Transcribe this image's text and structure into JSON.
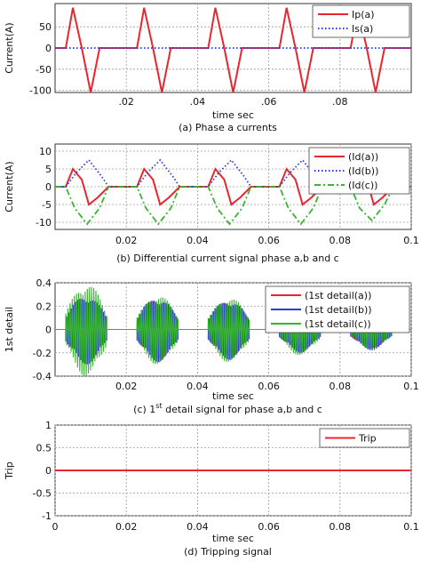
{
  "chart_data": [
    {
      "type": "line",
      "caption": "(a)  Phase a currents",
      "xlabel": "time sec",
      "ylabel": "Current(A)",
      "xlim": [
        0,
        0.1
      ],
      "ylim": [
        -105,
        105
      ],
      "xticks": [
        0.02,
        0.04,
        0.06,
        0.08
      ],
      "xtick_labels": [
        ".02",
        ".04",
        ".06",
        ".08"
      ],
      "yticks": [
        -100,
        -50,
        0,
        50
      ],
      "ytick_labels": [
        "-100",
        "-50",
        "0",
        "50"
      ],
      "grid": true,
      "legend_position": "top-right",
      "series": [
        {
          "name": "Ip(a)",
          "color": "#e8262f",
          "style": "solid",
          "x": [
            0,
            0.003,
            0.005,
            0.0075,
            0.01,
            0.0125,
            0.015,
            0.023,
            0.025,
            0.0275,
            0.03,
            0.0325,
            0.035,
            0.043,
            0.045,
            0.0475,
            0.05,
            0.0525,
            0.055,
            0.063,
            0.065,
            0.0675,
            0.07,
            0.0725,
            0.075,
            0.083,
            0.085,
            0.0875,
            0.09,
            0.0925,
            0.095,
            0.1
          ],
          "y": [
            0,
            0,
            95,
            0,
            -105,
            0,
            0,
            0,
            95,
            0,
            -105,
            0,
            0,
            0,
            95,
            0,
            -105,
            0,
            0,
            0,
            95,
            0,
            -105,
            0,
            0,
            0,
            95,
            0,
            -105,
            0,
            0,
            0
          ]
        },
        {
          "name": "Is(a)",
          "color": "#2b3fd0",
          "style": "dotted",
          "x": [
            0,
            0.1
          ],
          "y": [
            0,
            0
          ]
        }
      ]
    },
    {
      "type": "line",
      "caption": "(b)  Differential current signal phase a,b and c",
      "xlabel": "",
      "ylabel": "Current(A)",
      "xlim": [
        0,
        0.1
      ],
      "ylim": [
        -12,
        12
      ],
      "xticks": [
        0.02,
        0.04,
        0.06,
        0.08,
        0.1
      ],
      "xtick_labels": [
        "0.02",
        "0.04",
        "0.06",
        "0.08",
        "0.1"
      ],
      "yticks": [
        -10,
        -5,
        0,
        5,
        10
      ],
      "ytick_labels": [
        "-10",
        "-5",
        "0",
        "5",
        "10"
      ],
      "grid": true,
      "legend_position": "top-right",
      "series": [
        {
          "name": "(Id(a))",
          "color": "#e8262f",
          "style": "solid",
          "x": [
            0,
            0.003,
            0.005,
            0.0075,
            0.0095,
            0.012,
            0.015,
            0.023,
            0.025,
            0.0275,
            0.0295,
            0.032,
            0.035,
            0.043,
            0.045,
            0.0475,
            0.0495,
            0.052,
            0.055,
            0.063,
            0.065,
            0.0675,
            0.0695,
            0.072,
            0.075,
            0.083,
            0.085,
            0.0875,
            0.0895,
            0.092,
            0.095,
            0.1
          ],
          "y": [
            0,
            0,
            5,
            2,
            -5,
            -3,
            0,
            0,
            5,
            2,
            -5,
            -3,
            0,
            0,
            5,
            2,
            -5,
            -3,
            0,
            0,
            5,
            2,
            -5,
            -3,
            0,
            0,
            5,
            2,
            -5,
            -3,
            0,
            0
          ]
        },
        {
          "name": "(Id(b))",
          "color": "#2b3fd0",
          "style": "dotted",
          "x": [
            0,
            0.003,
            0.006,
            0.0095,
            0.013,
            0.015,
            0.023,
            0.026,
            0.0295,
            0.033,
            0.035,
            0.043,
            0.046,
            0.0495,
            0.053,
            0.055,
            0.063,
            0.066,
            0.0695,
            0.073,
            0.075,
            0.083,
            0.086,
            0.0895,
            0.093,
            0.095,
            0.1
          ],
          "y": [
            0,
            0,
            4,
            7.5,
            3,
            0,
            0,
            4,
            7.5,
            3,
            0,
            0,
            4,
            7.5,
            3,
            0,
            0,
            4,
            7.5,
            3,
            0,
            0,
            4,
            7.5,
            3,
            0,
            0
          ]
        },
        {
          "name": "(Id(c))",
          "color": "#37b52f",
          "style": "dashdot",
          "x": [
            0,
            0.003,
            0.0055,
            0.009,
            0.0125,
            0.015,
            0.023,
            0.0255,
            0.029,
            0.0325,
            0.035,
            0.043,
            0.0455,
            0.049,
            0.0525,
            0.055,
            0.063,
            0.0655,
            0.069,
            0.0725,
            0.075,
            0.083,
            0.0855,
            0.089,
            0.0925,
            0.095,
            0.1
          ],
          "y": [
            0,
            0,
            -6,
            -10.5,
            -6,
            0,
            0,
            -6,
            -10.5,
            -6,
            0,
            0,
            -6,
            -10.5,
            -6,
            0,
            0,
            -6,
            -10.5,
            -6,
            0,
            0,
            -6,
            -9.5,
            -5,
            0,
            0
          ]
        }
      ]
    },
    {
      "type": "line",
      "caption_prefix": "(c)  1",
      "caption_sup": "st",
      "caption_suffix": " detail signal for phase a,b and c",
      "xlabel": "time sec",
      "ylabel": "1st detail",
      "xlim": [
        0,
        0.1
      ],
      "ylim": [
        -0.4,
        0.4
      ],
      "xticks": [
        0.02,
        0.04,
        0.06,
        0.08,
        0.1
      ],
      "xtick_labels": [
        "0.02",
        "0.04",
        "0.06",
        "0.08",
        "0.1"
      ],
      "yticks": [
        -0.4,
        -0.2,
        0,
        0.2,
        0.4
      ],
      "ytick_labels": [
        "-0.4",
        "-0.2",
        "0",
        "0.2",
        "0.4"
      ],
      "grid": true,
      "legend_position": "top-right",
      "bursts": [
        [
          0.003,
          0.0145
        ],
        [
          0.023,
          0.0345
        ],
        [
          0.043,
          0.0545
        ],
        [
          0.063,
          0.0745
        ],
        [
          0.083,
          0.0945
        ]
      ],
      "series": [
        {
          "name": "(1st detail(a))",
          "color": "#e8262f",
          "amplitude": [
            0.28,
            0.26,
            0.24,
            0.18,
            0.16
          ]
        },
        {
          "name": "(1st detail(b))",
          "color": "#2b3fd0",
          "amplitude": [
            0.3,
            0.28,
            0.26,
            0.2,
            0.18
          ]
        },
        {
          "name": "(1st detail(c))",
          "color": "#37b52f",
          "amplitude": [
            0.4,
            0.3,
            0.28,
            0.22,
            0.17
          ]
        }
      ]
    },
    {
      "type": "line",
      "caption": "(d)  Tripping signal",
      "xlabel": "time sec",
      "ylabel": "Trip",
      "xlim": [
        0,
        0.1
      ],
      "ylim": [
        -1,
        1
      ],
      "xticks": [
        0,
        0.02,
        0.04,
        0.06,
        0.08,
        0.1
      ],
      "xtick_labels": [
        "0",
        "0.02",
        "0.04",
        "0.06",
        "0.08",
        "0.1"
      ],
      "yticks": [
        -1,
        -0.5,
        0,
        0.5,
        1
      ],
      "ytick_labels": [
        "-1",
        "-0.5",
        "0",
        "0.5",
        "1"
      ],
      "grid": true,
      "legend_position": "top-right",
      "series": [
        {
          "name": "Trip",
          "color": "#e8262f",
          "style": "solid",
          "x": [
            0,
            0.1
          ],
          "y": [
            0,
            0
          ]
        }
      ]
    }
  ]
}
